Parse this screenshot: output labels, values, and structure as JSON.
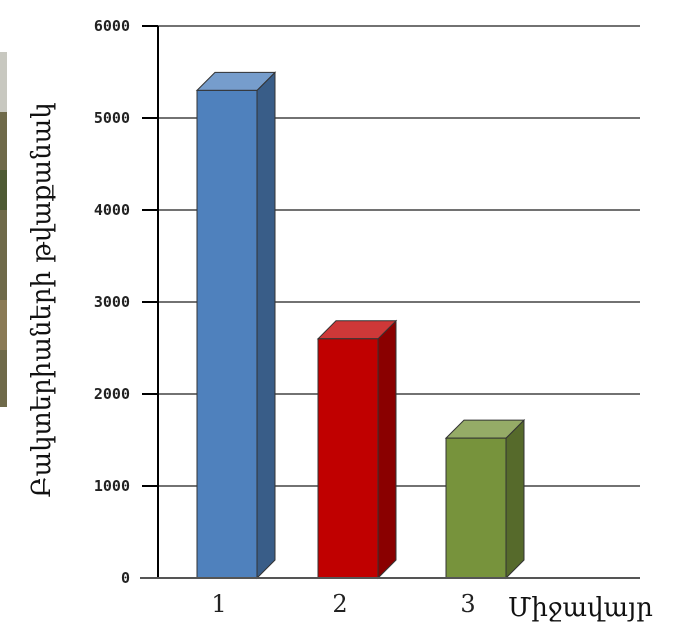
{
  "chart_data": {
    "type": "bar",
    "categories": [
      "1",
      "2",
      "3"
    ],
    "values": [
      5300,
      2600,
      1520
    ],
    "xlabel": "Միջավայր",
    "ylabel": "Բակտերիաների թվաքանակ",
    "ylim": [
      0,
      6000
    ],
    "yticks": [
      0,
      1000,
      2000,
      3000,
      4000,
      5000,
      6000
    ],
    "grid": true,
    "bar_style": "3d",
    "colors": [
      "#4f81bd",
      "#c00000",
      "#77933c"
    ]
  }
}
